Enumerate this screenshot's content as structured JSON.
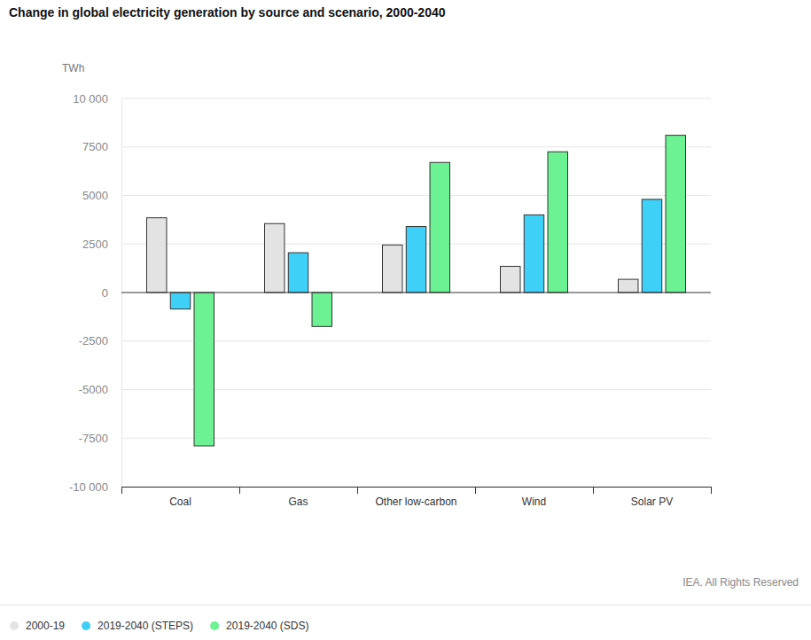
{
  "chart_data": {
    "type": "bar",
    "title": "Change in global electricity generation by source and scenario, 2000-2040",
    "y_label": "TWh",
    "source": "IEA. All Rights Reserved",
    "categories": [
      "Coal",
      "Gas",
      "Other low-carbon",
      "Wind",
      "Solar PV"
    ],
    "series": [
      {
        "name": "2000-19",
        "color": "#e3e3e3",
        "values": [
          3850,
          3550,
          2450,
          1350,
          680
        ]
      },
      {
        "name": "2019-2040 (STEPS)",
        "color": "#3fd0f7",
        "values": [
          -850,
          2050,
          3400,
          4000,
          4800
        ]
      },
      {
        "name": "2019-2040 (SDS)",
        "color": "#6cf292",
        "values": [
          -7900,
          -1750,
          6700,
          7250,
          8100
        ]
      }
    ],
    "ylim": [
      -10000,
      10000
    ],
    "yticks": [
      {
        "value": -10000,
        "label": "-10 000"
      },
      -7500,
      -5000,
      -2500,
      0,
      2500,
      5000,
      7500,
      {
        "value": 10000,
        "label": "10 000"
      }
    ],
    "grid": true,
    "legend": "bottom-left"
  }
}
